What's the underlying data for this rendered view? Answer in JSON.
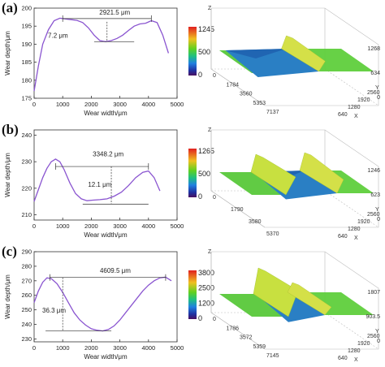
{
  "panels": [
    {
      "label": "(a)",
      "profile": {
        "xlabel": "Wear width/μm",
        "ylabel": "Wear depth/μm",
        "xticks": [
          "0",
          "1000",
          "2000",
          "3000",
          "4000",
          "5000"
        ],
        "yticks": [
          "175",
          "180",
          "185",
          "190",
          "195",
          "200"
        ],
        "ylim": [
          175,
          200
        ],
        "xlim": [
          0,
          5000
        ],
        "width_annotation": "2921.5 μm",
        "depth_annotation": "7.2 μm"
      },
      "map": {
        "colorbar_ticks": [
          "1245",
          "500",
          "0"
        ],
        "axis_x_ticks": [
          "0",
          "1784",
          "3560",
          "5353",
          "7137"
        ],
        "axis_y_ticks": [
          "640",
          "1280",
          "1920",
          "2560"
        ],
        "axis_z_ticks": [
          "1268",
          "634",
          "0"
        ],
        "x_label": "X",
        "y_label": "Y",
        "z_label": "Z"
      }
    },
    {
      "label": "(b)",
      "profile": {
        "xlabel": "Wear width/μm",
        "ylabel": "Wear depth/μm",
        "xticks": [
          "0",
          "1000",
          "2000",
          "3000",
          "4000",
          "5000"
        ],
        "yticks": [
          "210",
          "220",
          "230",
          "240"
        ],
        "ylim": [
          208,
          242
        ],
        "xlim": [
          0,
          5000
        ],
        "width_annotation": "3348.2 μm",
        "depth_annotation": "12.1 μm"
      },
      "map": {
        "colorbar_ticks": [
          "1265",
          "500",
          "0"
        ],
        "axis_x_ticks": [
          "0",
          "1790",
          "3580",
          "5370"
        ],
        "axis_y_ticks": [
          "640",
          "1280",
          "1920",
          "2560"
        ],
        "axis_z_ticks": [
          "1246",
          "623",
          "0"
        ],
        "x_label": "X",
        "y_label": "Y",
        "z_label": "Z"
      }
    },
    {
      "label": "(c)",
      "profile": {
        "xlabel": "Wear width/μm",
        "ylabel": "Wear depth/μm",
        "xticks": [
          "0",
          "1000",
          "2000",
          "3000",
          "4000",
          "5000"
        ],
        "yticks": [
          "230",
          "240",
          "250",
          "260",
          "270",
          "280",
          "290"
        ],
        "ylim": [
          228,
          290
        ],
        "xlim": [
          0,
          5000
        ],
        "width_annotation": "4609.5 μm",
        "depth_annotation": "36.3 μm"
      },
      "map": {
        "colorbar_ticks": [
          "3800",
          "2500",
          "1200",
          "0"
        ],
        "axis_x_ticks": [
          "0",
          "1786",
          "3572",
          "5359",
          "7145"
        ],
        "axis_y_ticks": [
          "640",
          "1280",
          "1920",
          "2560"
        ],
        "axis_z_ticks": [
          "1807",
          "903.5",
          "0"
        ],
        "x_label": "X",
        "y_label": "Y",
        "z_label": "Z"
      }
    }
  ],
  "chart_data": [
    {
      "type": "line",
      "xlabel": "Wear width/μm",
      "ylabel": "Wear depth/μm",
      "xlim": [
        0,
        5000
      ],
      "ylim": [
        175,
        200
      ],
      "x": [
        0,
        150,
        300,
        500,
        700,
        900,
        1100,
        1300,
        1500,
        1700,
        1900,
        2100,
        2300,
        2500,
        2700,
        2900,
        3100,
        3300,
        3500,
        3700,
        3900,
        4100,
        4300,
        4500,
        4700
      ],
      "series": [
        {
          "values": [
            177,
            184,
            190,
            194,
            196.5,
            197.2,
            197,
            196.8,
            196.6,
            196,
            194.5,
            192.5,
            191,
            190.7,
            191,
            191.6,
            192.5,
            193.8,
            195,
            195.6,
            195.8,
            196.5,
            196,
            192.5,
            187.5
          ]
        }
      ],
      "annotations": [
        "2921.5 μm",
        "7.2 μm"
      ]
    },
    {
      "type": "line",
      "xlabel": "Wear width/μm",
      "ylabel": "Wear depth/μm",
      "xlim": [
        0,
        5000
      ],
      "ylim": [
        208,
        242
      ],
      "x": [
        0,
        150,
        300,
        450,
        600,
        750,
        900,
        1050,
        1250,
        1450,
        1650,
        1850,
        2050,
        2300,
        2550,
        2800,
        3050,
        3300,
        3550,
        3800,
        4000,
        4200,
        4400
      ],
      "series": [
        {
          "values": [
            215,
            219.5,
            224,
            227.5,
            230,
            231,
            230,
            227,
            222,
            218,
            216,
            215.3,
            215.5,
            215.7,
            216,
            217,
            218.5,
            221,
            224,
            226,
            226.5,
            224,
            219
          ]
        }
      ],
      "annotations": [
        "3348.2 μm",
        "12.1 μm"
      ]
    },
    {
      "type": "line",
      "xlabel": "Wear width/μm",
      "ylabel": "Wear depth/μm",
      "xlim": [
        0,
        5000
      ],
      "ylim": [
        228,
        290
      ],
      "x": [
        0,
        150,
        300,
        450,
        600,
        800,
        1000,
        1200,
        1400,
        1600,
        1800,
        2000,
        2200,
        2400,
        2600,
        2800,
        3000,
        3200,
        3400,
        3600,
        3800,
        4000,
        4200,
        4400,
        4600,
        4800
      ],
      "series": [
        {
          "values": [
            255,
            263,
            269,
            272,
            271.5,
            268,
            262,
            255,
            248,
            243,
            239.5,
            237,
            236,
            235.5,
            236.5,
            239,
            243,
            248,
            253,
            258,
            263,
            267,
            270,
            272,
            272.5,
            270
          ]
        }
      ],
      "annotations": [
        "4609.5 μm",
        "36.3 μm"
      ]
    }
  ]
}
